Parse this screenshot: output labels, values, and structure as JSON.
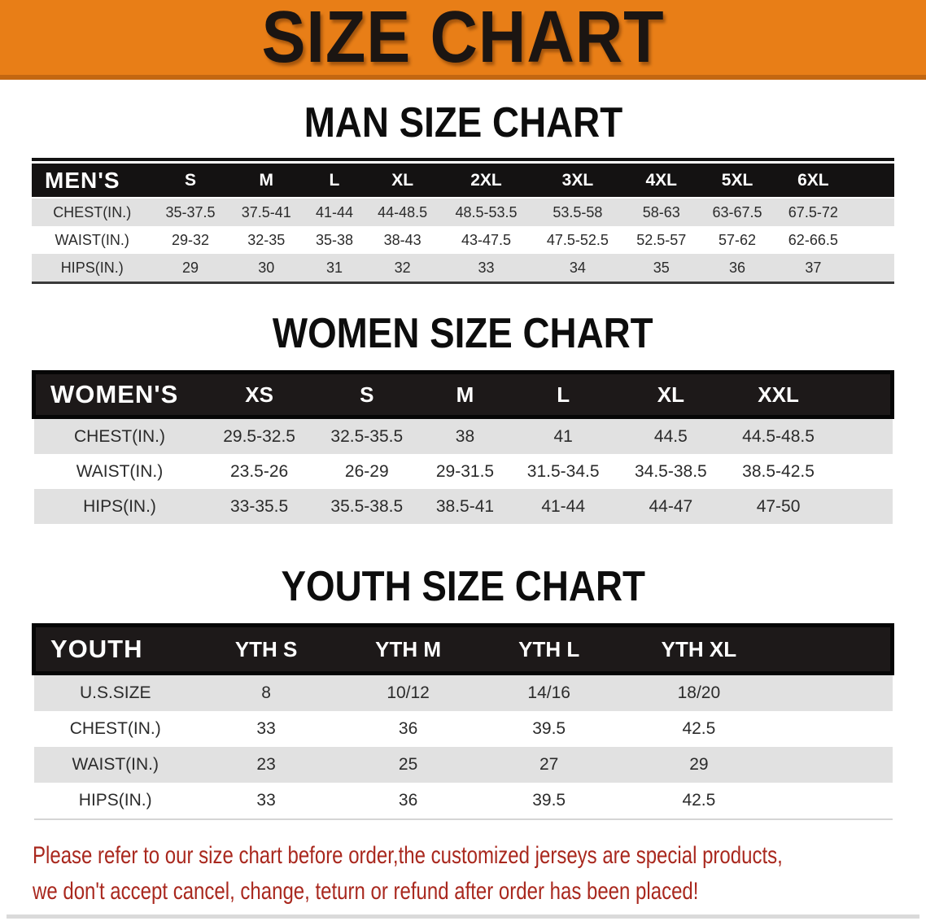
{
  "banner": {
    "title": "SIZE CHART",
    "bg_color": "#E87E17"
  },
  "colors": {
    "banner_orange": "#E87E17",
    "header_black": "#1D1919",
    "row_gray": "#E1E1E1",
    "footer_red": "#A9281E"
  },
  "tables": {
    "men": {
      "heading": "MAN SIZE CHART",
      "label": "MEN'S",
      "sizes": [
        "S",
        "M",
        "L",
        "XL",
        "2XL",
        "3XL",
        "4XL",
        "5XL",
        "6XL"
      ],
      "rows": [
        {
          "label": "CHEST(IN.)",
          "values": [
            "35-37.5",
            "37.5-41",
            "41-44",
            "44-48.5",
            "48.5-53.5",
            "53.5-58",
            "58-63",
            "63-67.5",
            "67.5-72"
          ]
        },
        {
          "label": "WAIST(IN.)",
          "values": [
            "29-32",
            "32-35",
            "35-38",
            "38-43",
            "43-47.5",
            "47.5-52.5",
            "52.5-57",
            "57-62",
            "62-66.5"
          ]
        },
        {
          "label": "HIPS(IN.)",
          "values": [
            "29",
            "30",
            "31",
            "32",
            "33",
            "34",
            "35",
            "36",
            "37"
          ]
        }
      ]
    },
    "women": {
      "heading": "WOMEN SIZE CHART",
      "label": "WOMEN'S",
      "sizes": [
        "XS",
        "S",
        "M",
        "L",
        "XL",
        "XXL"
      ],
      "rows": [
        {
          "label": "CHEST(IN.)",
          "values": [
            "29.5-32.5",
            "32.5-35.5",
            "38",
            "41",
            "44.5",
            "44.5-48.5"
          ]
        },
        {
          "label": "WAIST(IN.)",
          "values": [
            "23.5-26",
            "26-29",
            "29-31.5",
            "31.5-34.5",
            "34.5-38.5",
            "38.5-42.5"
          ]
        },
        {
          "label": "HIPS(IN.)",
          "values": [
            "33-35.5",
            "35.5-38.5",
            "38.5-41",
            "41-44",
            "44-47",
            "47-50"
          ]
        }
      ]
    },
    "youth": {
      "heading": "YOUTH SIZE CHART",
      "label": "YOUTH",
      "sizes": [
        "YTH S",
        "YTH M",
        "YTH L",
        "YTH XL"
      ],
      "rows": [
        {
          "label": "U.S.SIZE",
          "values": [
            "8",
            "10/12",
            "14/16",
            "18/20"
          ]
        },
        {
          "label": "CHEST(IN.)",
          "values": [
            "33",
            "36",
            "39.5",
            "42.5"
          ]
        },
        {
          "label": "WAIST(IN.)",
          "values": [
            "23",
            "25",
            "27",
            "29"
          ]
        },
        {
          "label": "HIPS(IN.)",
          "values": [
            "33",
            "36",
            "39.5",
            "42.5"
          ]
        }
      ]
    }
  },
  "footer": {
    "line1": "Please refer to our size chart before order,the customized jerseys are special products,",
    "line2": "we don't accept cancel, change, teturn or refund after order has been placed!"
  }
}
